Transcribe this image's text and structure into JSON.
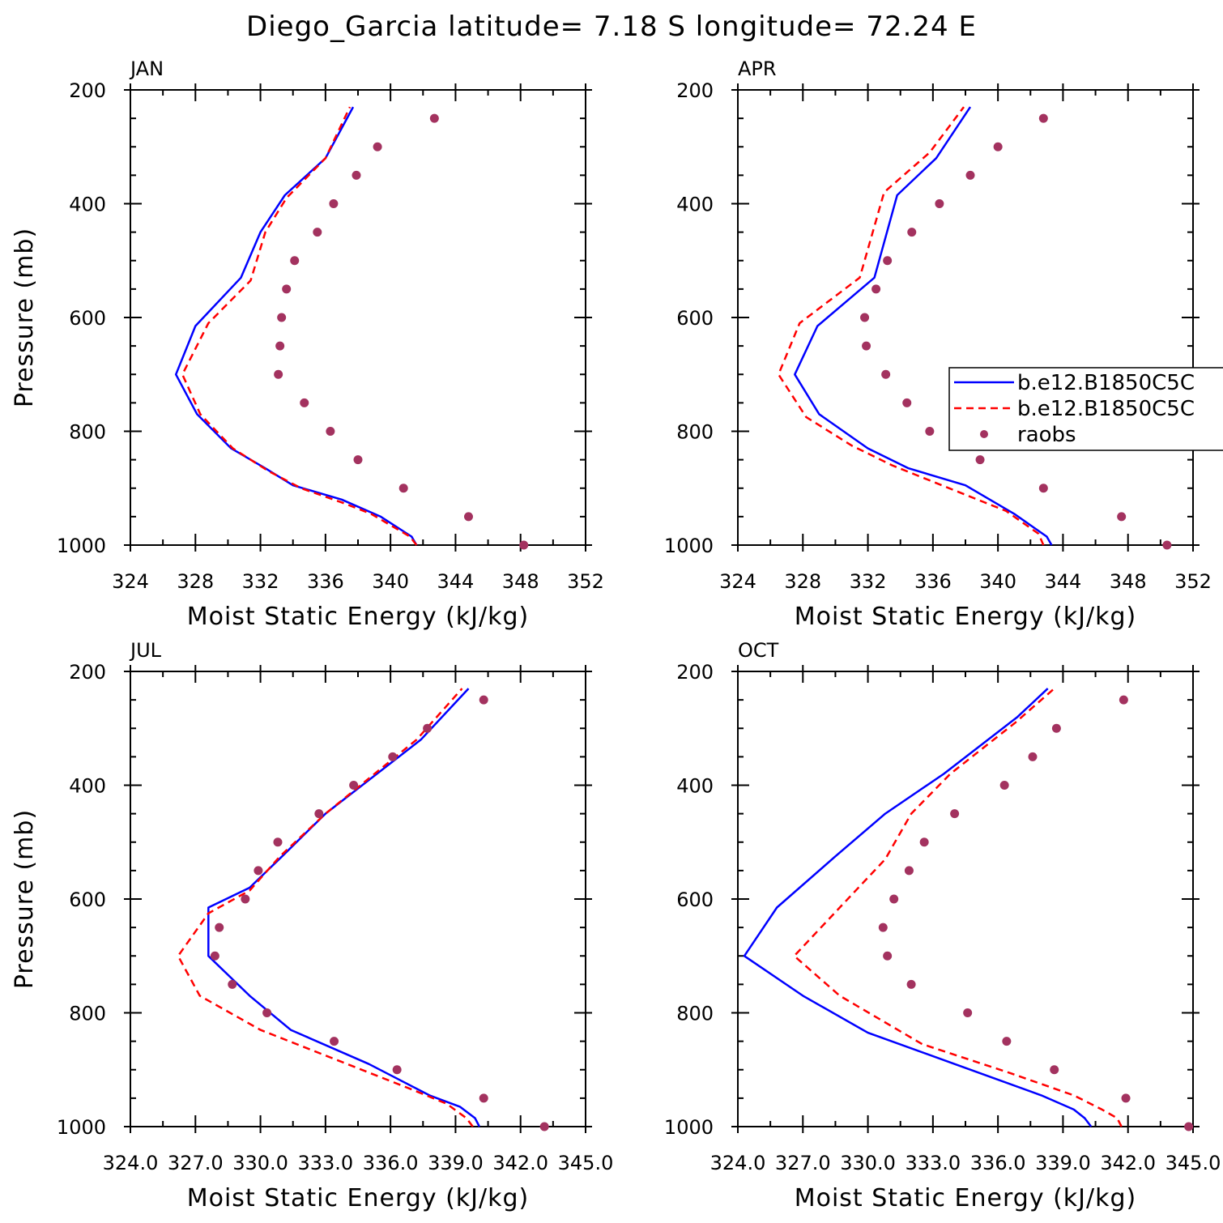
{
  "figure_title": "Diego_Garcia  latitude= 7.18 S longitude= 72.24 E",
  "colors": {
    "model_1": "#0000ff",
    "model_2": "#ff0000",
    "raobs": "#a3325f"
  },
  "legend": {
    "location": "APR panel, right side (clipped at figure edge)",
    "entries": [
      "b.e12.B1850C5C",
      "b.e12.B1850C5C",
      "raobs"
    ]
  },
  "chart_data": [
    {
      "type": "line",
      "panel": "JAN",
      "title": "JAN",
      "xlabel": "Moist Static Energy (kJ/kg)",
      "ylabel": "Pressure (mb)",
      "xlim": [
        324,
        352
      ],
      "ylim": [
        1000,
        200
      ],
      "xticklabels": [
        "324",
        "328",
        "332",
        "336",
        "340",
        "344",
        "348",
        "352"
      ],
      "yticklabels": [
        "200",
        "400",
        "600",
        "800",
        "1000"
      ],
      "series": [
        {
          "name": "b.e12.B1850C5C",
          "style": "solid",
          "color": "#0000ff",
          "x": [
            341.6,
            341.3,
            339.4,
            337.0,
            334.0,
            332.3,
            330.2,
            328.1,
            326.8,
            328.0,
            330.8,
            332.0,
            333.5,
            336.0,
            337.7
          ],
          "y": [
            1000,
            985,
            950,
            920,
            895,
            865,
            830,
            770,
            700,
            615,
            530,
            450,
            385,
            320,
            230
          ]
        },
        {
          "name": "b.e12.B1850C5C",
          "style": "dashed",
          "color": "#ff0000",
          "x": [
            341.6,
            341.2,
            338.8,
            337.0,
            334.5,
            332.5,
            330.3,
            328.3,
            327.2,
            328.8,
            331.4,
            332.3,
            333.6,
            336.0,
            337.5
          ],
          "y": [
            1000,
            985,
            945,
            925,
            900,
            870,
            830,
            770,
            700,
            610,
            535,
            450,
            390,
            320,
            230
          ]
        },
        {
          "name": "raobs",
          "style": "dots",
          "color": "#a3325f",
          "x": [
            348.2,
            344.8,
            340.8,
            338.0,
            336.3,
            334.7,
            333.6,
            334.1,
            335.5,
            336.5,
            337.9,
            339.2,
            342.7,
            333.3,
            333.2,
            333.1
          ],
          "y": [
            1000,
            950,
            900,
            850,
            800,
            750,
            550,
            500,
            450,
            400,
            350,
            300,
            250,
            600,
            650,
            700
          ]
        }
      ]
    },
    {
      "type": "line",
      "panel": "APR",
      "title": "APR",
      "xlabel": "Moist Static Energy (kJ/kg)",
      "ylabel": "",
      "xlim": [
        324,
        352
      ],
      "ylim": [
        1000,
        200
      ],
      "xticklabels": [
        "324",
        "328",
        "332",
        "336",
        "340",
        "344",
        "348",
        "352"
      ],
      "yticklabels": [
        "200",
        "400",
        "600",
        "800",
        "1000"
      ],
      "series": [
        {
          "name": "b.e12.B1850C5C",
          "style": "solid",
          "color": "#0000ff",
          "x": [
            343.3,
            343.0,
            341.0,
            338.0,
            334.5,
            332.0,
            329.0,
            327.5,
            328.9,
            332.4,
            333.8,
            336.2,
            338.3
          ],
          "y": [
            1000,
            985,
            945,
            895,
            865,
            830,
            770,
            700,
            615,
            530,
            385,
            320,
            230
          ]
        },
        {
          "name": "b.e12.B1850C5C",
          "style": "dashed",
          "color": "#ff0000",
          "x": [
            342.8,
            342.5,
            340.5,
            337.0,
            333.5,
            331.0,
            328.2,
            326.5,
            327.8,
            331.5,
            333.0,
            335.8,
            337.9
          ],
          "y": [
            1000,
            980,
            940,
            900,
            860,
            825,
            775,
            700,
            610,
            530,
            380,
            310,
            230
          ]
        },
        {
          "name": "raobs",
          "style": "dots",
          "color": "#a3325f",
          "x": [
            350.4,
            347.6,
            342.8,
            338.9,
            335.8,
            334.4,
            333.1,
            332.5,
            333.2,
            334.7,
            336.4,
            338.3,
            340.0,
            342.8,
            331.8,
            331.9
          ],
          "y": [
            1000,
            950,
            900,
            850,
            800,
            750,
            700,
            550,
            500,
            450,
            400,
            350,
            300,
            250,
            600,
            650
          ]
        }
      ]
    },
    {
      "type": "line",
      "panel": "JUL",
      "title": "JUL",
      "xlabel": "Moist Static Energy (kJ/kg)",
      "ylabel": "Pressure (mb)",
      "xlim": [
        324.0,
        345.0
      ],
      "ylim": [
        1000,
        200
      ],
      "xticklabels": [
        "324.0",
        "327.0",
        "330.0",
        "333.0",
        "336.0",
        "339.0",
        "342.0",
        "345.0"
      ],
      "yticklabels": [
        "200",
        "400",
        "600",
        "800",
        "1000"
      ],
      "series": [
        {
          "name": "b.e12.B1850C5C",
          "style": "solid",
          "color": "#0000ff",
          "x": [
            340.1,
            339.9,
            339.2,
            337.8,
            335.0,
            331.4,
            329.5,
            327.6,
            327.6,
            327.6,
            329.5,
            331.0,
            333.0,
            337.4,
            339.6
          ],
          "y": [
            1000,
            985,
            965,
            945,
            890,
            830,
            770,
            700,
            650,
            615,
            580,
            525,
            450,
            320,
            230
          ]
        },
        {
          "name": "b.e12.B1850C5C",
          "style": "dashed",
          "color": "#ff0000",
          "x": [
            339.8,
            339.5,
            338.6,
            337.0,
            334.0,
            330.0,
            327.2,
            326.2,
            327.6,
            329.5,
            330.9,
            333.0,
            337.2,
            339.3
          ],
          "y": [
            1000,
            985,
            960,
            935,
            890,
            830,
            770,
            700,
            625,
            585,
            525,
            450,
            320,
            230
          ]
        },
        {
          "name": "raobs",
          "style": "dots",
          "color": "#a3325f",
          "x": [
            343.1,
            340.3,
            336.3,
            333.4,
            330.3,
            328.7,
            327.9,
            328.1,
            329.3,
            329.9,
            330.8,
            332.7,
            334.3,
            336.1,
            337.7,
            340.3
          ],
          "y": [
            1000,
            950,
            900,
            850,
            800,
            750,
            700,
            650,
            600,
            550,
            500,
            450,
            400,
            350,
            300,
            250
          ]
        }
      ]
    },
    {
      "type": "line",
      "panel": "OCT",
      "title": "OCT",
      "xlabel": "Moist Static Energy (kJ/kg)",
      "ylabel": "",
      "xlim": [
        324.0,
        345.0
      ],
      "ylim": [
        1000,
        200
      ],
      "xticklabels": [
        "324.0",
        "327.0",
        "330.0",
        "333.0",
        "336.0",
        "339.0",
        "342.0",
        "345.0"
      ],
      "yticklabels": [
        "200",
        "400",
        "600",
        "800",
        "1000"
      ],
      "series": [
        {
          "name": "b.e12.B1850C5C",
          "style": "solid",
          "color": "#0000ff",
          "x": [
            340.3,
            340.0,
            339.5,
            338.0,
            334.0,
            330.0,
            327.0,
            324.3,
            325.8,
            328.5,
            330.8,
            333.5,
            336.9,
            338.3
          ],
          "y": [
            1000,
            985,
            970,
            945,
            890,
            835,
            770,
            700,
            615,
            525,
            450,
            380,
            280,
            230
          ]
        },
        {
          "name": "b.e12.B1850C5C",
          "style": "dashed",
          "color": "#ff0000",
          "x": [
            341.7,
            341.5,
            340.8,
            339.5,
            336.5,
            332.5,
            328.7,
            326.6,
            328.7,
            330.8,
            332.0,
            333.8,
            336.8,
            338.6
          ],
          "y": [
            1000,
            985,
            970,
            945,
            905,
            855,
            770,
            700,
            615,
            530,
            450,
            380,
            290,
            230
          ]
        },
        {
          "name": "raobs",
          "style": "dots",
          "color": "#a3325f",
          "x": [
            344.8,
            341.9,
            338.6,
            336.4,
            334.6,
            332.0,
            330.9,
            330.7,
            331.2,
            331.9,
            332.6,
            334.0,
            336.3,
            337.6,
            338.7,
            341.8
          ],
          "y": [
            1000,
            950,
            900,
            850,
            800,
            750,
            700,
            650,
            600,
            550,
            500,
            450,
            400,
            350,
            300,
            250
          ]
        }
      ]
    }
  ]
}
